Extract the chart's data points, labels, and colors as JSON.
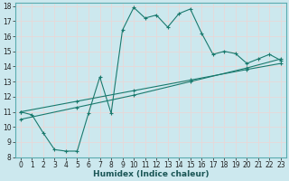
{
  "title": "",
  "xlabel": "Humidex (Indice chaleur)",
  "xlim": [
    -0.5,
    23.5
  ],
  "ylim": [
    8,
    18.2
  ],
  "xticks": [
    0,
    1,
    2,
    3,
    4,
    5,
    6,
    7,
    8,
    9,
    10,
    11,
    12,
    13,
    14,
    15,
    16,
    17,
    18,
    19,
    20,
    21,
    22,
    23
  ],
  "yticks": [
    8,
    9,
    10,
    11,
    12,
    13,
    14,
    15,
    16,
    17,
    18
  ],
  "bg_color": "#cce8ee",
  "grid_color": "#e8d8d8",
  "line_color": "#1a7a6e",
  "line1_x": [
    0,
    1,
    2,
    3,
    4,
    5,
    6,
    7,
    8,
    9,
    10,
    11,
    12,
    13,
    14,
    15,
    16,
    17,
    18,
    19,
    20,
    21,
    22,
    23
  ],
  "line1_y": [
    11.0,
    10.8,
    9.6,
    8.5,
    8.4,
    8.4,
    10.9,
    13.3,
    10.9,
    16.4,
    17.9,
    17.2,
    17.4,
    16.6,
    17.5,
    17.8,
    16.2,
    14.8,
    15.0,
    14.85,
    14.2,
    14.5,
    14.8,
    14.4
  ],
  "line2_x": [
    0,
    5,
    10,
    15,
    20,
    23
  ],
  "line2_y": [
    10.5,
    11.3,
    12.1,
    13.0,
    13.9,
    14.5
  ],
  "line3_x": [
    0,
    5,
    10,
    15,
    20,
    23
  ],
  "line3_y": [
    11.0,
    11.7,
    12.4,
    13.1,
    13.8,
    14.2
  ],
  "tick_fontsize": 5.5,
  "label_fontsize": 6.5
}
